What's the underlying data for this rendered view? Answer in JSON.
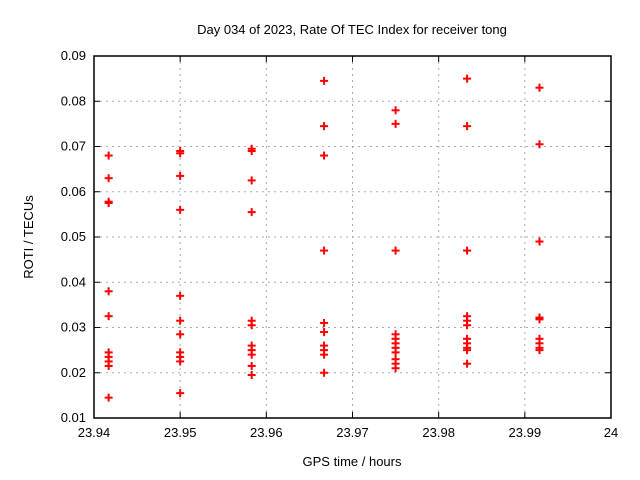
{
  "chart_data": {
    "type": "scatter",
    "title": "Day 034 of 2023, Rate Of TEC Index for receiver tong",
    "xlabel": "GPS time / hours",
    "ylabel": "ROTI / TECUs",
    "xlim": [
      23.94,
      24
    ],
    "ylim": [
      0.01,
      0.09
    ],
    "grid": true,
    "legend": false,
    "xticks": [
      {
        "v": 23.94,
        "label": "23.94"
      },
      {
        "v": 23.95,
        "label": "23.95"
      },
      {
        "v": 23.96,
        "label": "23.96"
      },
      {
        "v": 23.97,
        "label": "23.97"
      },
      {
        "v": 23.98,
        "label": "23.98"
      },
      {
        "v": 23.99,
        "label": "23.99"
      },
      {
        "v": 24,
        "label": "24"
      }
    ],
    "yticks": [
      {
        "v": 0.01,
        "label": "0.01"
      },
      {
        "v": 0.02,
        "label": "0.02"
      },
      {
        "v": 0.03,
        "label": "0.03"
      },
      {
        "v": 0.04,
        "label": "0.04"
      },
      {
        "v": 0.05,
        "label": "0.05"
      },
      {
        "v": 0.06,
        "label": "0.06"
      },
      {
        "v": 0.07,
        "label": "0.07"
      },
      {
        "v": 0.08,
        "label": "0.08"
      },
      {
        "v": 0.09,
        "label": "0.09"
      }
    ],
    "style": {
      "marker_shape": "plus",
      "marker_color": "#ff0000",
      "marker_size": 4,
      "marker_stroke_width": 2,
      "grid_color": "#aaaaaa",
      "grid_dash": "2 4",
      "border_color": "#000000",
      "tick_length": 6,
      "text_color": "#000000"
    },
    "series": [
      {
        "name": "ROTI",
        "points": [
          [
            23.9417,
            0.068
          ],
          [
            23.9417,
            0.063
          ],
          [
            23.9417,
            0.0578
          ],
          [
            23.9417,
            0.0575
          ],
          [
            23.9417,
            0.038
          ],
          [
            23.9417,
            0.0325
          ],
          [
            23.9417,
            0.0245
          ],
          [
            23.9417,
            0.0235
          ],
          [
            23.9417,
            0.0225
          ],
          [
            23.9417,
            0.0215
          ],
          [
            23.9417,
            0.0145
          ],
          [
            23.95,
            0.069
          ],
          [
            23.95,
            0.0685
          ],
          [
            23.95,
            0.0635
          ],
          [
            23.95,
            0.056
          ],
          [
            23.95,
            0.037
          ],
          [
            23.95,
            0.0315
          ],
          [
            23.95,
            0.0285
          ],
          [
            23.95,
            0.0245
          ],
          [
            23.95,
            0.0235
          ],
          [
            23.95,
            0.0225
          ],
          [
            23.95,
            0.0155
          ],
          [
            23.9583,
            0.0695
          ],
          [
            23.9583,
            0.069
          ],
          [
            23.9583,
            0.0625
          ],
          [
            23.9583,
            0.0555
          ],
          [
            23.9583,
            0.0315
          ],
          [
            23.9583,
            0.0305
          ],
          [
            23.9583,
            0.026
          ],
          [
            23.9583,
            0.025
          ],
          [
            23.9583,
            0.024
          ],
          [
            23.9583,
            0.0215
          ],
          [
            23.9583,
            0.0195
          ],
          [
            23.9667,
            0.0845
          ],
          [
            23.9667,
            0.0745
          ],
          [
            23.9667,
            0.068
          ],
          [
            23.9667,
            0.047
          ],
          [
            23.9667,
            0.031
          ],
          [
            23.9667,
            0.029
          ],
          [
            23.9667,
            0.026
          ],
          [
            23.9667,
            0.025
          ],
          [
            23.9667,
            0.024
          ],
          [
            23.9667,
            0.02
          ],
          [
            23.975,
            0.078
          ],
          [
            23.975,
            0.075
          ],
          [
            23.975,
            0.047
          ],
          [
            23.975,
            0.0285
          ],
          [
            23.975,
            0.0275
          ],
          [
            23.975,
            0.0265
          ],
          [
            23.975,
            0.0255
          ],
          [
            23.975,
            0.0245
          ],
          [
            23.975,
            0.023
          ],
          [
            23.975,
            0.022
          ],
          [
            23.975,
            0.021
          ],
          [
            23.9833,
            0.085
          ],
          [
            23.9833,
            0.0745
          ],
          [
            23.9833,
            0.047
          ],
          [
            23.9833,
            0.0325
          ],
          [
            23.9833,
            0.0315
          ],
          [
            23.9833,
            0.0305
          ],
          [
            23.9833,
            0.0275
          ],
          [
            23.9833,
            0.0265
          ],
          [
            23.9833,
            0.0255
          ],
          [
            23.9833,
            0.025
          ],
          [
            23.9833,
            0.022
          ],
          [
            23.9917,
            0.083
          ],
          [
            23.9917,
            0.0705
          ],
          [
            23.9917,
            0.049
          ],
          [
            23.9917,
            0.0322
          ],
          [
            23.9917,
            0.0318
          ],
          [
            23.9917,
            0.0275
          ],
          [
            23.9917,
            0.0265
          ],
          [
            23.9917,
            0.0255
          ],
          [
            23.9917,
            0.025
          ]
        ]
      }
    ]
  }
}
